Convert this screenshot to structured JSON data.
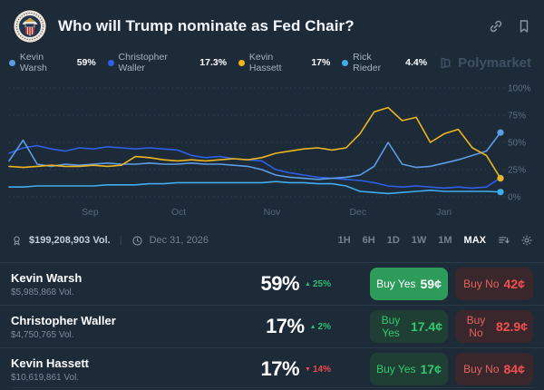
{
  "header": {
    "title": "Who will Trump nominate as Fed Chair?"
  },
  "watermark": "Polymarket",
  "legend": [
    {
      "name": "Kevin Warsh",
      "value": "59%",
      "color": "#5D9CE6"
    },
    {
      "name": "Christopher Waller",
      "value": "17.3%",
      "color": "#2E5FE8"
    },
    {
      "name": "Kevin Hassett",
      "value": "17%",
      "color": "#EDB51E"
    },
    {
      "name": "Rick Rieder",
      "value": "4.4%",
      "color": "#41ACEC"
    }
  ],
  "chart_data": {
    "type": "line",
    "title": "Who will Trump nominate as Fed Chair?",
    "ylim": [
      0,
      100
    ],
    "yticks": [
      0,
      25,
      50,
      75,
      100
    ],
    "ytick_labels": [
      "0%",
      "25%",
      "50%",
      "75%",
      "100%"
    ],
    "x_ticks": [
      {
        "label": "Sep",
        "pos": 0.165
      },
      {
        "label": "Oct",
        "pos": 0.345
      },
      {
        "label": "Nov",
        "pos": 0.535
      },
      {
        "label": "Dec",
        "pos": 0.71
      },
      {
        "label": "Jan",
        "pos": 0.885
      }
    ],
    "grid": "dotted-horizontal",
    "legend_position": "top-left",
    "series": [
      {
        "name": "Christopher Waller",
        "color": "#2E5FE8",
        "values": [
          40,
          45,
          47,
          44,
          42,
          45,
          44,
          46,
          45,
          44,
          45,
          44,
          43,
          38,
          36,
          37,
          35,
          34,
          33,
          25,
          22,
          20,
          18,
          17,
          16,
          15,
          13,
          10,
          9,
          10,
          9,
          8,
          9,
          8,
          9,
          17.3
        ]
      },
      {
        "name": "Rick Rieder",
        "color": "#41ACEC",
        "values": [
          9,
          9,
          10,
          10,
          10,
          10,
          10,
          11,
          11,
          11,
          12,
          12,
          13,
          13,
          13,
          13,
          13,
          13,
          13,
          14,
          13,
          13,
          12,
          12,
          10,
          5,
          4,
          3,
          4,
          5,
          6,
          5,
          5,
          5,
          5,
          4.4
        ]
      },
      {
        "name": "Kevin Warsh",
        "color": "#5D9CE6",
        "values": [
          33,
          52,
          30,
          28,
          30,
          29,
          30,
          31,
          30,
          30,
          31,
          30,
          30,
          31,
          30,
          30,
          29,
          28,
          25,
          20,
          18,
          17,
          16,
          17,
          18,
          20,
          28,
          50,
          30,
          27,
          28,
          31,
          34,
          38,
          42,
          59
        ]
      },
      {
        "name": "Kevin Hassett",
        "color": "#EDB51E",
        "values": [
          28,
          27,
          28,
          29,
          28,
          28,
          29,
          28,
          29,
          37,
          36,
          34,
          33,
          34,
          33,
          34,
          35,
          34,
          36,
          40,
          42,
          44,
          45,
          43,
          45,
          58,
          78,
          82,
          70,
          73,
          50,
          58,
          62,
          45,
          38,
          17
        ]
      }
    ]
  },
  "toolbar": {
    "volume": "$199,208,903 Vol.",
    "date": "Dec 31, 2026",
    "timeframes": [
      "1H",
      "6H",
      "1D",
      "1W",
      "1M",
      "MAX"
    ],
    "active_timeframe": "MAX"
  },
  "outcomes": [
    {
      "name": "Kevin Warsh",
      "volume": "$5,985,868 Vol.",
      "percent": "59%",
      "arrow": "▲",
      "change": "25%",
      "direction": "up",
      "buy_yes_label": "Buy Yes",
      "buy_yes_price": "59¢",
      "buy_no_label": "Buy No",
      "buy_no_price": "42¢"
    },
    {
      "name": "Christopher Waller",
      "volume": "$4,750,765 Vol.",
      "percent": "17%",
      "arrow": "▲",
      "change": "2%",
      "direction": "up",
      "buy_yes_label": "Buy Yes",
      "buy_yes_price": "17.4¢",
      "buy_no_label": "Buy No",
      "buy_no_price": "82.9¢"
    },
    {
      "name": "Kevin Hassett",
      "volume": "$10,619,861 Vol.",
      "percent": "17%",
      "arrow": "▼",
      "change": "14%",
      "direction": "down",
      "buy_yes_label": "Buy Yes",
      "buy_yes_price": "17¢",
      "buy_no_label": "Buy No",
      "buy_no_price": "84¢"
    }
  ],
  "colors": {
    "background": "#1D2B39",
    "divider": "#2B3A49",
    "buy_yes_solid": "#2D9C5B",
    "buy_yes_text": "#31C96E",
    "buy_no_text": "#E2625F",
    "change_up": "#2DBD6E",
    "change_down": "#F0474C"
  }
}
